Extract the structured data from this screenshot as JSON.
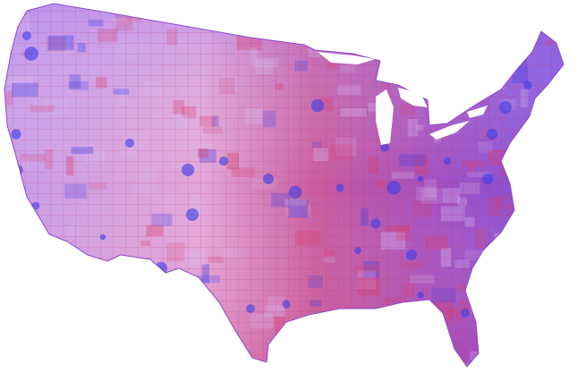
{
  "map": {
    "colors": {
      "background": "#ffffff",
      "base_purple": "#b77ad8",
      "red_tint": "#d9406e",
      "blue_tint": "#3a3ee8",
      "light_lavender": "#d8b8ee",
      "county_lines": "#c0285a"
    }
  }
}
